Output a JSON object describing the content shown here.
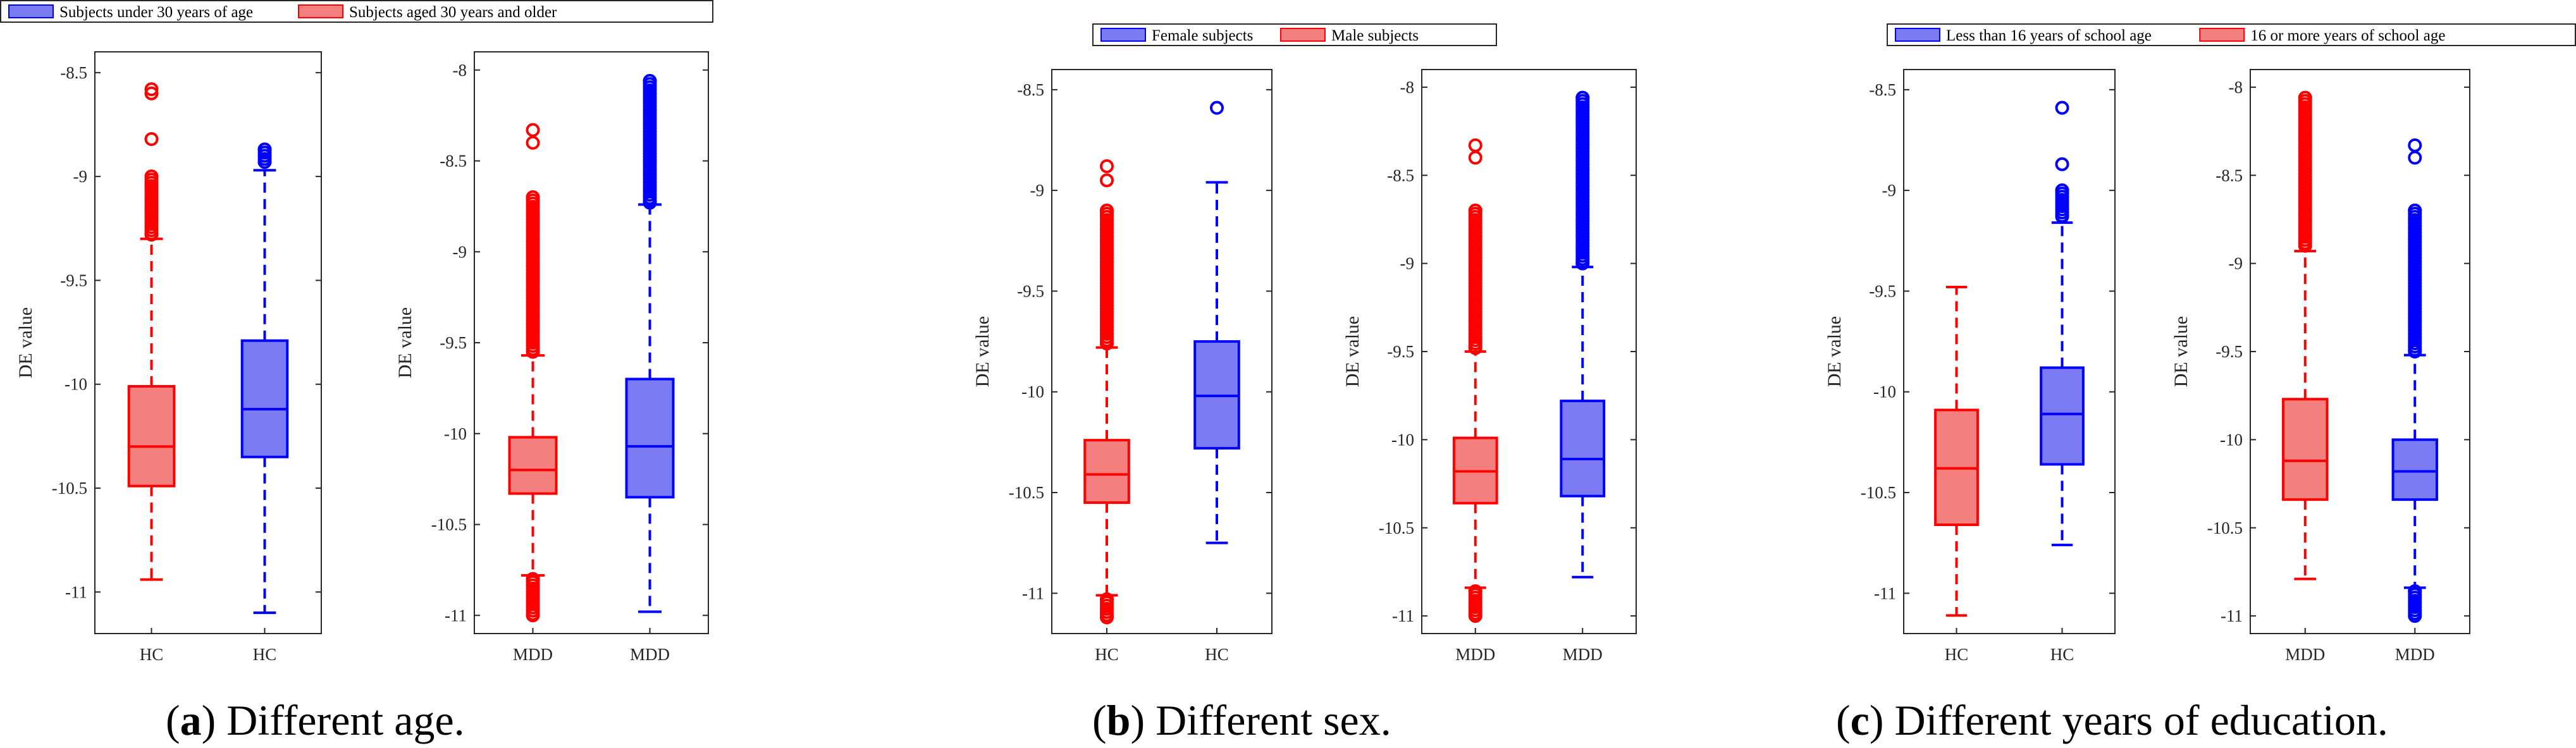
{
  "colors": {
    "red": "#ff0000",
    "blue": "#0000ff",
    "red_fill": "#f47f7f",
    "blue_fill": "#7b7bf4"
  },
  "captions": [
    {
      "letter": "a",
      "text": ") Different age."
    },
    {
      "letter": "b",
      "text": ") Different sex."
    },
    {
      "letter": "c",
      "text": ") Different years of education."
    }
  ],
  "chart_data": [
    {
      "type": "box",
      "panel": "a",
      "legend": {
        "placement": "top",
        "entries": [
          {
            "label": "Subjects under 30 years of age",
            "color": "blue"
          },
          {
            "label": "Subjects aged 30 years and older",
            "color": "red"
          }
        ]
      },
      "plots": [
        {
          "ylabel": "DE value",
          "ylim": [
            -11.2,
            -8.4
          ],
          "yticks": [
            -11,
            -10.5,
            -10,
            -9.5,
            -9,
            -8.5
          ],
          "categories": [
            "HC",
            "HC"
          ],
          "boxes": [
            {
              "color": "red",
              "q1": -10.49,
              "median": -10.3,
              "q3": -10.01,
              "wlo": -10.94,
              "whi": -9.3,
              "outliers_low": [],
              "outliers_high": [
                -9.28,
                -9.0,
                -8.82,
                -8.6,
                -8.58
              ]
            },
            {
              "color": "blue",
              "q1": -10.35,
              "median": -10.12,
              "q3": -9.79,
              "wlo": -11.1,
              "whi": -8.97,
              "outliers_low": [],
              "outliers_high": [
                -8.93,
                -8.87
              ]
            }
          ]
        },
        {
          "ylabel": "DE value",
          "ylim": [
            -11.1,
            -7.9
          ],
          "yticks": [
            -11,
            -10.5,
            -10,
            -9.5,
            -9,
            -8.5,
            -8
          ],
          "categories": [
            "MDD",
            "MDD"
          ],
          "boxes": [
            {
              "color": "red",
              "q1": -10.33,
              "median": -10.2,
              "q3": -10.02,
              "wlo": -10.78,
              "whi": -9.57,
              "outliers_low": [
                -10.8,
                -11.0
              ],
              "outliers_high": [
                -9.55,
                -8.7,
                -8.4,
                -8.33
              ]
            },
            {
              "color": "blue",
              "q1": -10.35,
              "median": -10.07,
              "q3": -9.7,
              "wlo": -10.98,
              "whi": -8.74,
              "outliers_low": [],
              "outliers_high": [
                -8.73,
                -8.06
              ]
            }
          ]
        }
      ]
    },
    {
      "type": "box",
      "panel": "b",
      "legend": {
        "placement": "top",
        "entries": [
          {
            "label": "Female subjects",
            "color": "blue"
          },
          {
            "label": "Male subjects",
            "color": "red"
          }
        ]
      },
      "plots": [
        {
          "ylabel": "DE value",
          "ylim": [
            -11.2,
            -8.4
          ],
          "yticks": [
            -11,
            -10.5,
            -10,
            -9.5,
            -9,
            -8.5
          ],
          "categories": [
            "HC",
            "HC"
          ],
          "boxes": [
            {
              "color": "red",
              "q1": -10.55,
              "median": -10.41,
              "q3": -10.24,
              "wlo": -11.01,
              "whi": -9.78,
              "outliers_low": [
                -11.03,
                -11.12
              ],
              "outliers_high": [
                -9.76,
                -9.1,
                -8.95,
                -8.88
              ]
            },
            {
              "color": "blue",
              "q1": -10.28,
              "median": -10.02,
              "q3": -9.75,
              "wlo": -10.75,
              "whi": -8.96,
              "outliers_low": [],
              "outliers_high": [
                -8.59
              ]
            }
          ]
        },
        {
          "ylabel": "DE value",
          "ylim": [
            -11.1,
            -7.9
          ],
          "yticks": [
            -11,
            -10.5,
            -10,
            -9.5,
            -9,
            -8.5,
            -8
          ],
          "categories": [
            "MDD",
            "MDD"
          ],
          "boxes": [
            {
              "color": "red",
              "q1": -10.36,
              "median": -10.18,
              "q3": -9.99,
              "wlo": -10.84,
              "whi": -9.5,
              "outliers_low": [
                -10.86,
                -11.0
              ],
              "outliers_high": [
                -9.48,
                -8.7,
                -8.4,
                -8.33
              ]
            },
            {
              "color": "blue",
              "q1": -10.32,
              "median": -10.11,
              "q3": -9.78,
              "wlo": -10.78,
              "whi": -9.02,
              "outliers_low": [],
              "outliers_high": [
                -9.0,
                -8.06
              ]
            }
          ]
        }
      ]
    },
    {
      "type": "box",
      "panel": "c",
      "legend": {
        "placement": "top",
        "entries": [
          {
            "label": "Less than 16 years of school age",
            "color": "blue"
          },
          {
            "label": "16 or more years of school age",
            "color": "red"
          }
        ]
      },
      "plots": [
        {
          "ylabel": "DE value",
          "ylim": [
            -11.2,
            -8.4
          ],
          "yticks": [
            -11,
            -10.5,
            -10,
            -9.5,
            -9,
            -8.5
          ],
          "categories": [
            "HC",
            "HC"
          ],
          "boxes": [
            {
              "color": "red",
              "q1": -10.66,
              "median": -10.38,
              "q3": -10.09,
              "wlo": -11.11,
              "whi": -9.48,
              "outliers_low": [],
              "outliers_high": []
            },
            {
              "color": "blue",
              "q1": -10.36,
              "median": -10.11,
              "q3": -9.88,
              "wlo": -10.76,
              "whi": -9.16,
              "outliers_low": [],
              "outliers_high": [
                -9.13,
                -9.0,
                -8.87,
                -8.59
              ]
            }
          ]
        },
        {
          "ylabel": "DE value",
          "ylim": [
            -11.1,
            -7.9
          ],
          "yticks": [
            -11,
            -10.5,
            -10,
            -9.5,
            -9,
            -8.5,
            -8
          ],
          "categories": [
            "MDD",
            "MDD"
          ],
          "boxes": [
            {
              "color": "red",
              "q1": -10.34,
              "median": -10.12,
              "q3": -9.77,
              "wlo": -10.79,
              "whi": -8.93,
              "outliers_low": [],
              "outliers_high": [
                -8.9,
                -8.06
              ]
            },
            {
              "color": "blue",
              "q1": -10.34,
              "median": -10.18,
              "q3": -10.0,
              "wlo": -10.84,
              "whi": -9.52,
              "outliers_low": [
                -10.86,
                -11.0
              ],
              "outliers_high": [
                -9.5,
                -8.7,
                -8.4,
                -8.33
              ]
            }
          ]
        }
      ]
    }
  ]
}
